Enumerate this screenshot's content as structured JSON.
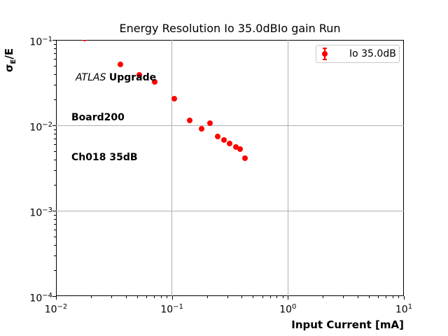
{
  "figure": {
    "title": "Energy Resolution Io 35.0dBIo gain Run",
    "background": "#ffffff"
  },
  "axes": {
    "xlabel": "Input Current [mA]",
    "ylabel": {
      "sigma": "σ",
      "subscript": "E",
      "rest": "/E"
    },
    "tick_base": "10",
    "x_tick_exponents": [
      "−2",
      "−1",
      "0",
      "1"
    ],
    "y_tick_exponents": [
      "−1",
      "−2",
      "−3",
      "−4"
    ],
    "grid_color": "#b0b0b0",
    "spine_color": "#000000"
  },
  "annotation": {
    "line1_italic": "ATLAS ",
    "line1_bold": "Upgrade",
    "line2": "Board200",
    "line3": "Ch018 35dB"
  },
  "legend": {
    "label": "Io 35.0dB",
    "marker_color": "#ff0000"
  },
  "chart_data": {
    "type": "scatter",
    "title": "Energy Resolution Io 35.0dBIo gain Run",
    "xlabel": "Input Current [mA]",
    "ylabel": "σ_E/E",
    "xscale": "log",
    "yscale": "log",
    "xlim": [
      0.01,
      10
    ],
    "ylim": [
      0.0001,
      0.1
    ],
    "grid": true,
    "legend_position": "upper right",
    "series": [
      {
        "name": "Io 35.0dB",
        "color": "#ff0000",
        "marker": "circle-errorbar",
        "x": [
          0.0177,
          0.036,
          0.052,
          0.071,
          0.105,
          0.143,
          0.179,
          0.212,
          0.248,
          0.281,
          0.315,
          0.357,
          0.389,
          0.427
        ],
        "y": [
          0.104,
          0.052,
          0.039,
          0.032,
          0.0205,
          0.0114,
          0.0091,
          0.0106,
          0.0074,
          0.0067,
          0.0061,
          0.0056,
          0.0053,
          0.0041
        ]
      }
    ]
  }
}
